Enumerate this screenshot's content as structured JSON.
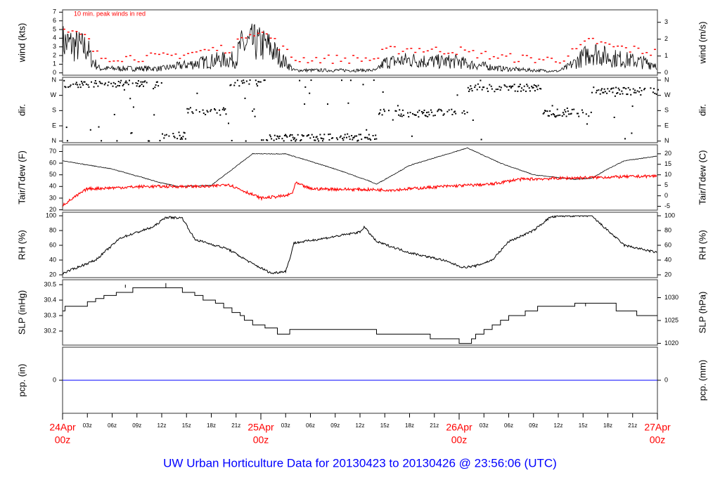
{
  "title": "UW Urban Horticulture Data for 20130423  to  20130426 @ 23:56:06  (UTC)",
  "colors": {
    "black": "#000000",
    "red": "#ff0000",
    "blue": "#0000ff",
    "frame": "#555555"
  },
  "chart_data": [
    {
      "type": "line",
      "name": "wind",
      "ylabel": "wind (kts)",
      "ylabel_right": "wind (m/s)",
      "annotation": "10 min. peak winds in red",
      "ylim": [
        0,
        7
      ],
      "yticks": [
        "0",
        "1",
        "2",
        "3",
        "4",
        "5",
        "6",
        "7"
      ],
      "yticks_right": [
        "0",
        "1",
        "2",
        "3"
      ],
      "series": [
        {
          "name": "mean wind",
          "color": "#000000",
          "hours": [
            0,
            3,
            3.5,
            4.5,
            6,
            12,
            19,
            21,
            21.5,
            23,
            25,
            26,
            27,
            28,
            38,
            39,
            42,
            45,
            48,
            49,
            51,
            53,
            57,
            60,
            61,
            63,
            64,
            66,
            72
          ],
          "values": [
            3.5,
            2.8,
            1.5,
            0.5,
            0.5,
            0.5,
            1.5,
            1.5,
            3,
            3.5,
            3,
            2,
            1.2,
            0.3,
            0.3,
            1.2,
            1.5,
            1.3,
            1.3,
            1.0,
            0.8,
            0.5,
            0.3,
            0.2,
            0.6,
            1.8,
            2.5,
            1.8,
            1.0
          ]
        },
        {
          "name": "10 min peak",
          "color": "#ff0000",
          "offset_kts": 1.3
        }
      ]
    },
    {
      "type": "scatter",
      "name": "dir",
      "ylabel": "dir.",
      "ylabel_right": "dir.",
      "yticks": [
        "N",
        "E",
        "S",
        "W",
        "N"
      ],
      "regimes": [
        {
          "from": 0,
          "to": 12,
          "deg": 340
        },
        {
          "from": 12,
          "to": 15,
          "deg": 30
        },
        {
          "from": 15,
          "to": 20,
          "deg": 175
        },
        {
          "from": 20,
          "to": 25,
          "deg": 345
        },
        {
          "from": 25,
          "to": 38,
          "deg": 20
        },
        {
          "from": 38,
          "to": 49,
          "deg": 165
        },
        {
          "from": 49,
          "to": 58,
          "deg": 315
        },
        {
          "from": 58,
          "to": 64,
          "deg": 165
        },
        {
          "from": 64,
          "to": 72,
          "deg": 295
        }
      ]
    },
    {
      "type": "line",
      "name": "temperature",
      "ylabel": "Tair/Tdew (F)",
      "ylabel_right": "Tair/Tdew (C)",
      "ylim": [
        20,
        70
      ],
      "yticks": [
        "20",
        "30",
        "40",
        "50",
        "60",
        "70"
      ],
      "yticks_right": [
        "-5",
        "0",
        "5",
        "10",
        "15",
        "20"
      ],
      "series": [
        {
          "name": "Tair",
          "color": "#000000",
          "hours": [
            0,
            6,
            12,
            14,
            18,
            23,
            27,
            33,
            37,
            38,
            42,
            49,
            53,
            57,
            62,
            64,
            66,
            68,
            72
          ],
          "values": [
            62,
            55,
            43,
            40,
            41,
            68,
            68,
            55,
            45,
            42,
            58,
            73,
            60,
            50,
            46,
            47,
            55,
            62,
            66
          ]
        },
        {
          "name": "Tdew",
          "color": "#ff0000",
          "hours": [
            0,
            3,
            10,
            18,
            20,
            24,
            27,
            27.8,
            28.2,
            30,
            40,
            46,
            52,
            55,
            60,
            66,
            72
          ],
          "values": [
            24,
            38,
            40,
            40,
            42,
            30,
            32,
            34,
            43,
            38,
            37,
            40,
            42,
            46,
            47,
            48,
            49
          ]
        }
      ]
    },
    {
      "type": "line",
      "name": "rh",
      "ylabel": "RH (%)",
      "ylabel_right": "RH (%)",
      "ylim": [
        20,
        100
      ],
      "yticks": [
        "20",
        "40",
        "60",
        "80",
        "100"
      ],
      "series": [
        {
          "name": "RH",
          "color": "#000000",
          "hours": [
            0,
            4,
            7,
            11,
            12.5,
            14.5,
            16,
            20,
            23,
            25.3,
            27,
            27.4,
            28,
            32,
            36,
            36.5,
            38,
            42,
            46,
            48.5,
            50,
            52,
            54,
            57,
            59,
            61,
            64,
            66,
            68,
            70,
            72
          ],
          "values": [
            22,
            40,
            70,
            85,
            98,
            97,
            68,
            55,
            35,
            22,
            25,
            38,
            63,
            70,
            78,
            85,
            65,
            50,
            40,
            30,
            32,
            40,
            65,
            80,
            98,
            100,
            100,
            80,
            60,
            55,
            50
          ]
        }
      ]
    },
    {
      "type": "line",
      "name": "slp",
      "ylabel": "SLP (inHg)",
      "ylabel_right": "SLP (hPa)",
      "ylim": [
        30.15,
        30.52
      ],
      "yticks": [
        "30.2",
        "30.3",
        "30.4",
        "30.5"
      ],
      "yticks_right": [
        "1020",
        "1025",
        "1030"
      ],
      "series": [
        {
          "name": "SLP",
          "color": "#000000",
          "step": true,
          "hours": [
            0,
            0.3,
            3,
            4,
            5,
            6.5,
            8.5,
            14.5,
            16,
            17,
            18.5,
            19.5,
            20.5,
            21.5,
            22,
            23,
            24.5,
            26,
            27.5,
            38,
            44.5,
            48,
            49.5,
            50,
            51,
            52,
            53,
            54,
            56,
            57.5,
            62,
            67,
            69.5
          ],
          "values": [
            30.33,
            30.36,
            30.39,
            30.41,
            30.43,
            30.45,
            30.48,
            30.45,
            30.43,
            30.4,
            30.38,
            30.35,
            30.32,
            30.3,
            30.27,
            30.24,
            30.22,
            30.18,
            30.21,
            30.18,
            30.15,
            30.12,
            30.15,
            30.18,
            30.21,
            30.24,
            30.27,
            30.3,
            30.33,
            30.36,
            30.38,
            30.33,
            30.3
          ]
        }
      ]
    },
    {
      "type": "line",
      "name": "pcp",
      "ylabel": "pcp. (in)",
      "ylabel_right": "pcp. (mm)",
      "yticks": [
        "0"
      ],
      "yticks_right": [
        "0"
      ],
      "series": [
        {
          "name": "precip",
          "color": "#0000ff",
          "value": 0
        }
      ]
    }
  ],
  "x_axis": {
    "range_hours": [
      0,
      72
    ],
    "hour_ticks": [
      "03z",
      "06z",
      "09z",
      "12z",
      "15z",
      "18z",
      "21z"
    ],
    "day_labels": [
      {
        "hour": 0,
        "day": "24Apr",
        "time": "00z"
      },
      {
        "hour": 24,
        "day": "25Apr",
        "time": "00z"
      },
      {
        "hour": 48,
        "day": "26Apr",
        "time": "00z"
      },
      {
        "hour": 72,
        "day": "27Apr",
        "time": "00z"
      }
    ]
  }
}
